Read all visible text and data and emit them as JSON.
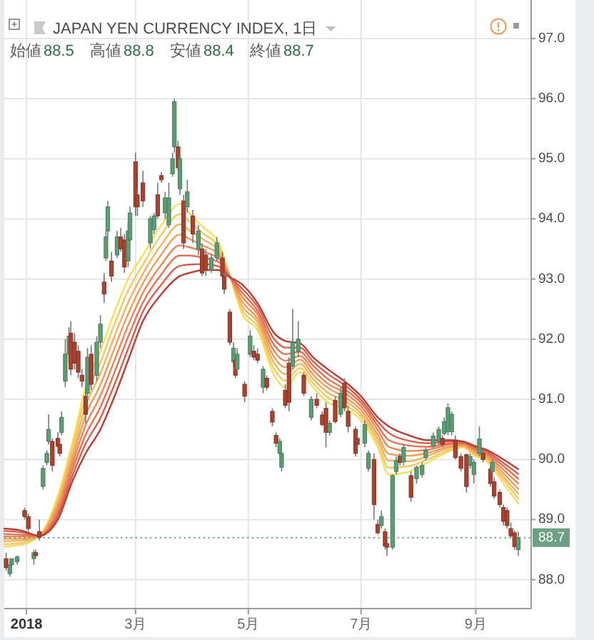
{
  "chart_data": {
    "type": "candlestick",
    "title": "JAPAN YEN CURRENCY INDEX, 1日",
    "annotations": [
      "始値88.5",
      "高値88.8",
      "安値88.4",
      "終値88.7"
    ],
    "xlim": [
      "2017-12-20",
      "2018-10-01"
    ],
    "xticks": [
      {
        "value": "2018-01-01",
        "label": "2018"
      },
      {
        "value": "2018-03-01",
        "label": "3月"
      },
      {
        "value": "2018-05-01",
        "label": "5月"
      },
      {
        "value": "2018-07-01",
        "label": "7月"
      },
      {
        "value": "2018-09-01",
        "label": "9月"
      }
    ],
    "ylim": [
      87.52,
      97.64
    ],
    "yticks": [
      {
        "value": 88,
        "label": "88.0"
      },
      {
        "value": 89,
        "label": "89.0"
      },
      {
        "value": 90,
        "label": "90.0"
      },
      {
        "value": 91,
        "label": "91.0"
      },
      {
        "value": 92,
        "label": "92.0"
      },
      {
        "value": 93,
        "label": "93.0"
      },
      {
        "value": 94,
        "label": "94.0"
      },
      {
        "value": 95,
        "label": "95.0"
      },
      {
        "value": 96,
        "label": "96.0"
      },
      {
        "value": 97,
        "label": "97.0"
      }
    ],
    "grid": true,
    "x": [
      "2017-12-21",
      "2017-12-23",
      "2017-12-24",
      "2017-12-27",
      "2017-12-31",
      "2018-01-02",
      "2018-01-05",
      "2018-01-06",
      "2018-01-08",
      "2018-01-10",
      "2018-01-12",
      "2018-01-13",
      "2018-01-15",
      "2018-01-18",
      "2018-01-19",
      "2018-01-20",
      "2018-01-22",
      "2018-01-24",
      "2018-01-25",
      "2018-01-27",
      "2018-01-29",
      "2018-01-31",
      "2018-02-02",
      "2018-02-03",
      "2018-02-05",
      "2018-02-08",
      "2018-02-10",
      "2018-02-12",
      "2018-02-13",
      "2018-02-14",
      "2018-02-16",
      "2018-02-19",
      "2018-02-21",
      "2018-02-23",
      "2018-02-25",
      "2018-02-26",
      "2018-03-01",
      "2018-03-02",
      "2018-03-05",
      "2018-03-09",
      "2018-03-11",
      "2018-03-13",
      "2018-03-15",
      "2018-03-17",
      "2018-03-19",
      "2018-03-21",
      "2018-03-22",
      "2018-03-24",
      "2018-03-25",
      "2018-03-27",
      "2018-03-29",
      "2018-04-01",
      "2018-04-04",
      "2018-04-06",
      "2018-04-08",
      "2018-04-11",
      "2018-04-14",
      "2018-04-17",
      "2018-04-18",
      "2018-04-21",
      "2018-04-23",
      "2018-04-24",
      "2018-04-25",
      "2018-04-29",
      "2018-05-02",
      "2018-05-04",
      "2018-05-06",
      "2018-05-09",
      "2018-05-11",
      "2018-05-14",
      "2018-05-16",
      "2018-05-18",
      "2018-05-19",
      "2018-05-21",
      "2018-05-23",
      "2018-05-25",
      "2018-05-28",
      "2018-05-31",
      "2018-06-04",
      "2018-06-07",
      "2018-06-10",
      "2018-06-12",
      "2018-06-14",
      "2018-06-17",
      "2018-06-20",
      "2018-06-22",
      "2018-06-24",
      "2018-06-28",
      "2018-06-29",
      "2018-07-03",
      "2018-07-05",
      "2018-07-08",
      "2018-07-10",
      "2018-07-12",
      "2018-07-14",
      "2018-07-15",
      "2018-07-18",
      "2018-07-20",
      "2018-07-22",
      "2018-07-24",
      "2018-07-28",
      "2018-07-31",
      "2018-08-03",
      "2018-08-05",
      "2018-08-09",
      "2018-08-12",
      "2018-08-14",
      "2018-08-15",
      "2018-08-17",
      "2018-08-19",
      "2018-08-21",
      "2018-08-24",
      "2018-08-27",
      "2018-08-29",
      "2018-08-31",
      "2018-09-03",
      "2018-09-05",
      "2018-09-09",
      "2018-09-10",
      "2018-09-11",
      "2018-09-14",
      "2018-09-16",
      "2018-09-18",
      "2018-09-20",
      "2018-09-22",
      "2018-09-24"
    ],
    "ohlc": [
      [
        88.35,
        88.45,
        88.15,
        88.2
      ],
      [
        88.1,
        88.3,
        88.05,
        88.25
      ],
      [
        88.25,
        88.35,
        88.2,
        88.35
      ],
      [
        88.3,
        88.4,
        88.25,
        88.38
      ],
      [
        89.15,
        89.2,
        89.0,
        89.05
      ],
      [
        89.05,
        89.1,
        88.8,
        88.85
      ],
      [
        88.35,
        88.5,
        88.25,
        88.45
      ],
      [
        88.45,
        88.5,
        88.38,
        88.4
      ],
      [
        88.8,
        89.0,
        88.65,
        88.7
      ],
      [
        89.55,
        89.9,
        89.5,
        89.85
      ],
      [
        89.95,
        90.15,
        89.9,
        90.1
      ],
      [
        90.3,
        90.75,
        90.25,
        90.5
      ],
      [
        90.3,
        90.35,
        89.8,
        89.9
      ],
      [
        90.35,
        90.45,
        90.2,
        90.22
      ],
      [
        90.25,
        90.3,
        90.05,
        90.1
      ],
      [
        90.45,
        90.8,
        90.4,
        90.7
      ],
      [
        91.3,
        92.0,
        91.2,
        91.75
      ],
      [
        91.75,
        92.2,
        91.6,
        92.05
      ],
      [
        92.1,
        92.3,
        91.4,
        91.5
      ],
      [
        91.95,
        92.1,
        91.5,
        91.6
      ],
      [
        91.8,
        91.9,
        91.35,
        91.45
      ],
      [
        91.4,
        91.5,
        91.2,
        91.3
      ],
      [
        91.05,
        91.15,
        90.6,
        90.75
      ],
      [
        91.1,
        91.85,
        91.0,
        91.7
      ],
      [
        91.75,
        91.9,
        91.15,
        91.25
      ],
      [
        91.4,
        92.05,
        91.3,
        91.95
      ],
      [
        91.95,
        92.4,
        91.85,
        92.25
      ],
      [
        92.95,
        93.1,
        92.6,
        92.75
      ],
      [
        93.35,
        93.8,
        93.3,
        93.7
      ],
      [
        93.8,
        94.3,
        93.7,
        94.2
      ],
      [
        93.3,
        93.45,
        92.95,
        93.05
      ],
      [
        93.4,
        93.8,
        93.35,
        93.7
      ],
      [
        93.7,
        93.85,
        93.45,
        93.5
      ],
      [
        93.65,
        93.75,
        93.1,
        93.2
      ],
      [
        93.3,
        93.95,
        93.2,
        93.8
      ],
      [
        93.65,
        94.2,
        93.6,
        94.1
      ],
      [
        94.95,
        95.1,
        94.05,
        94.2
      ],
      [
        94.4,
        94.5,
        94.05,
        94.2
      ],
      [
        94.6,
        94.8,
        94.2,
        94.3
      ],
      [
        93.6,
        94.05,
        93.5,
        94.0
      ],
      [
        93.82,
        94.1,
        93.75,
        94.05
      ],
      [
        94.4,
        94.6,
        94.0,
        94.05
      ],
      [
        94.72,
        94.78,
        94.6,
        94.65
      ],
      [
        94.1,
        94.45,
        94.0,
        94.35
      ],
      [
        93.9,
        94.6,
        93.85,
        94.35
      ],
      [
        94.75,
        95.1,
        94.7,
        95.0
      ],
      [
        95.2,
        96.0,
        95.1,
        95.95
      ],
      [
        95.2,
        95.3,
        94.8,
        94.85
      ],
      [
        94.5,
        95.1,
        94.4,
        95.0
      ],
      [
        94.3,
        94.4,
        93.5,
        93.6
      ],
      [
        94.2,
        94.65,
        94.1,
        94.45
      ],
      [
        94.05,
        94.15,
        93.6,
        93.75
      ],
      [
        93.5,
        93.9,
        93.4,
        93.8
      ],
      [
        93.5,
        93.6,
        93.05,
        93.1
      ],
      [
        93.4,
        93.5,
        93.05,
        93.15
      ],
      [
        93.15,
        93.4,
        93.1,
        93.35
      ],
      [
        93.35,
        93.7,
        93.3,
        93.6
      ],
      [
        93.35,
        93.45,
        93.0,
        93.05
      ],
      [
        93.05,
        93.1,
        92.75,
        92.83
      ],
      [
        92.45,
        92.5,
        91.9,
        91.95
      ],
      [
        91.62,
        91.95,
        91.55,
        91.85
      ],
      [
        91.65,
        91.7,
        91.35,
        91.4
      ],
      [
        91.5,
        91.85,
        91.45,
        91.75
      ],
      [
        91.25,
        91.3,
        90.95,
        91.05
      ],
      [
        91.75,
        92.15,
        91.7,
        92.05
      ],
      [
        91.8,
        91.9,
        91.65,
        91.7
      ],
      [
        91.75,
        91.85,
        91.6,
        91.65
      ],
      [
        91.2,
        91.55,
        91.1,
        91.5
      ],
      [
        91.35,
        91.4,
        91.15,
        91.2
      ],
      [
        90.8,
        90.85,
        90.55,
        90.62
      ],
      [
        90.4,
        90.45,
        90.2,
        90.27
      ],
      [
        90.1,
        90.35,
        90.05,
        90.3
      ],
      [
        89.87,
        90.15,
        89.8,
        90.1
      ],
      [
        91.15,
        91.25,
        90.85,
        90.9
      ],
      [
        91.6,
        91.7,
        90.8,
        90.95
      ],
      [
        91.55,
        92.5,
        91.5,
        91.95
      ],
      [
        91.8,
        92.3,
        91.7,
        92.0
      ],
      [
        91.4,
        91.45,
        91.05,
        91.1
      ],
      [
        90.7,
        91.05,
        90.65,
        91.0
      ],
      [
        91.0,
        91.1,
        90.85,
        90.9
      ],
      [
        90.74,
        90.8,
        90.55,
        90.58
      ],
      [
        90.85,
        90.95,
        90.2,
        90.45
      ],
      [
        90.45,
        90.65,
        90.4,
        90.6
      ],
      [
        90.98,
        91.05,
        90.6,
        90.63
      ],
      [
        90.75,
        91.2,
        90.7,
        91.1
      ],
      [
        91.27,
        91.35,
        90.8,
        90.86
      ],
      [
        90.8,
        90.9,
        90.45,
        90.55
      ],
      [
        90.5,
        90.55,
        90.05,
        90.1
      ],
      [
        90.35,
        90.4,
        90.2,
        90.25
      ],
      [
        90.27,
        90.65,
        90.2,
        90.58
      ],
      [
        89.85,
        90.15,
        89.8,
        90.1
      ],
      [
        90.0,
        90.1,
        89.0,
        89.25
      ],
      [
        88.92,
        89.0,
        88.75,
        88.78
      ],
      [
        88.9,
        89.15,
        88.85,
        89.05
      ],
      [
        88.8,
        88.85,
        88.5,
        88.56
      ],
      [
        88.6,
        88.65,
        88.4,
        88.54
      ],
      [
        88.54,
        89.75,
        88.5,
        89.73
      ],
      [
        89.8,
        90.05,
        89.75,
        89.98
      ],
      [
        90.05,
        90.1,
        89.9,
        89.95
      ],
      [
        89.96,
        90.25,
        89.9,
        90.2
      ],
      [
        89.73,
        89.8,
        89.3,
        89.37
      ],
      [
        89.68,
        89.9,
        89.6,
        89.87
      ],
      [
        89.75,
        89.95,
        89.7,
        89.9
      ],
      [
        90.03,
        90.2,
        89.98,
        90.15
      ],
      [
        90.22,
        90.45,
        90.18,
        90.39
      ],
      [
        90.3,
        90.55,
        90.25,
        90.5
      ],
      [
        90.35,
        90.4,
        90.2,
        90.25
      ],
      [
        90.43,
        90.7,
        90.4,
        90.63
      ],
      [
        90.46,
        90.93,
        90.4,
        90.86
      ],
      [
        90.46,
        90.8,
        90.4,
        90.75
      ],
      [
        90.32,
        90.4,
        90.0,
        90.03
      ],
      [
        90.05,
        90.1,
        89.8,
        89.85
      ],
      [
        90.08,
        90.1,
        89.45,
        89.55
      ],
      [
        89.9,
        90.1,
        89.85,
        90.05
      ],
      [
        89.75,
        90.0,
        89.6,
        89.95
      ],
      [
        90.1,
        90.55,
        90.05,
        90.34
      ],
      [
        90.1,
        90.15,
        89.95,
        90.0
      ],
      [
        89.84,
        89.9,
        89.55,
        89.6
      ],
      [
        89.8,
        90.0,
        89.75,
        89.95
      ],
      [
        89.63,
        89.7,
        89.35,
        89.39
      ],
      [
        89.45,
        89.5,
        89.2,
        89.25
      ],
      [
        89.2,
        89.25,
        88.9,
        88.97
      ],
      [
        89.15,
        89.2,
        88.85,
        88.9
      ],
      [
        88.85,
        88.95,
        88.7,
        88.73
      ],
      [
        88.78,
        88.82,
        88.5,
        88.55
      ],
      [
        88.5,
        88.8,
        88.4,
        88.7
      ]
    ],
    "colors": [
      "#a8432f",
      "#5e9c74",
      "#5e9c74",
      "#5e9c74",
      "#a8432f",
      "#a8432f",
      "#5e9c74",
      "#a8432f",
      "#a8432f",
      "#5e9c74",
      "#5e9c74",
      "#5e9c74",
      "#a8432f",
      "#a8432f",
      "#a8432f",
      "#5e9c74",
      "#5e9c74",
      "#5e9c74",
      "#a8432f",
      "#a8432f",
      "#a8432f",
      "#a8432f",
      "#a8432f",
      "#5e9c74",
      "#a8432f",
      "#5e9c74",
      "#5e9c74",
      "#a8432f",
      "#5e9c74",
      "#5e9c74",
      "#a8432f",
      "#5e9c74",
      "#a8432f",
      "#a8432f",
      "#5e9c74",
      "#5e9c74",
      "#a8432f",
      "#a8432f",
      "#a8432f",
      "#5e9c74",
      "#5e9c74",
      "#a8432f",
      "#a8432f",
      "#5e9c74",
      "#5e9c74",
      "#5e9c74",
      "#5e9c74",
      "#a8432f",
      "#5e9c74",
      "#a8432f",
      "#5e9c74",
      "#a8432f",
      "#5e9c74",
      "#a8432f",
      "#a8432f",
      "#5e9c74",
      "#5e9c74",
      "#a8432f",
      "#a8432f",
      "#a8432f",
      "#5e9c74",
      "#a8432f",
      "#5e9c74",
      "#a8432f",
      "#5e9c74",
      "#a8432f",
      "#a8432f",
      "#5e9c74",
      "#a8432f",
      "#a8432f",
      "#a8432f",
      "#5e9c74",
      "#5e9c74",
      "#a8432f",
      "#a8432f",
      "#5e9c74",
      "#5e9c74",
      "#a8432f",
      "#5e9c74",
      "#a8432f",
      "#a8432f",
      "#a8432f",
      "#5e9c74",
      "#a8432f",
      "#5e9c74",
      "#a8432f",
      "#a8432f",
      "#a8432f",
      "#a8432f",
      "#5e9c74",
      "#5e9c74",
      "#a8432f",
      "#a8432f",
      "#5e9c74",
      "#a8432f",
      "#a8432f",
      "#5e9c74",
      "#5e9c74",
      "#a8432f",
      "#5e9c74",
      "#a8432f",
      "#5e9c74",
      "#5e9c74",
      "#5e9c74",
      "#5e9c74",
      "#5e9c74",
      "#a8432f",
      "#5e9c74",
      "#5e9c74",
      "#5e9c74",
      "#a8432f",
      "#a8432f",
      "#a8432f",
      "#5e9c74",
      "#5e9c74",
      "#5e9c74",
      "#a8432f",
      "#a8432f",
      "#5e9c74",
      "#a8432f",
      "#a8432f",
      "#a8432f",
      "#a8432f",
      "#a8432f",
      "#a8432f",
      "#5e9c74"
    ],
    "series": [
      {
        "type": "line",
        "color": "#f3df5a",
        "x": [
          "2017-12-20",
          "2017-12-29",
          "2018-01-08",
          "2018-01-18",
          "2018-01-26",
          "2018-02-02",
          "2018-02-10",
          "2018-02-17",
          "2018-02-25",
          "2018-03-05",
          "2018-03-15",
          "2018-03-25",
          "2018-03-30",
          "2018-04-07",
          "2018-04-15",
          "2018-04-20",
          "2018-04-28",
          "2018-05-06",
          "2018-05-15",
          "2018-05-21",
          "2018-05-29",
          "2018-06-05",
          "2018-06-13",
          "2018-06-22",
          "2018-07-01",
          "2018-07-10",
          "2018-07-16",
          "2018-07-27",
          "2018-08-06",
          "2018-08-19",
          "2018-08-25",
          "2018-09-01",
          "2018-09-06",
          "2018-09-16",
          "2018-09-24"
        ],
        "values": [
          88.55,
          88.58,
          88.73,
          89.4,
          90.3,
          91.2,
          91.8,
          92.4,
          93.0,
          93.4,
          93.9,
          94.25,
          94.1,
          93.85,
          93.6,
          93.15,
          92.4,
          92.15,
          91.4,
          91.2,
          91.45,
          91.2,
          90.95,
          90.85,
          90.65,
          90.2,
          89.75,
          89.8,
          89.95,
          90.15,
          90.2,
          90.05,
          90.0,
          89.6,
          89.27
        ]
      },
      {
        "type": "line",
        "color": "#f4c961",
        "x": [
          "2017-12-20",
          "2017-12-29",
          "2018-01-08",
          "2018-01-18",
          "2018-01-26",
          "2018-02-02",
          "2018-02-10",
          "2018-02-17",
          "2018-02-25",
          "2018-03-05",
          "2018-03-15",
          "2018-03-25",
          "2018-03-30",
          "2018-04-07",
          "2018-04-15",
          "2018-04-20",
          "2018-04-28",
          "2018-05-06",
          "2018-05-15",
          "2018-05-21",
          "2018-05-29",
          "2018-06-05",
          "2018-06-13",
          "2018-06-22",
          "2018-07-01",
          "2018-07-10",
          "2018-07-16",
          "2018-07-27",
          "2018-08-06",
          "2018-08-19",
          "2018-08-25",
          "2018-09-01",
          "2018-09-06",
          "2018-09-16",
          "2018-09-24"
        ],
        "values": [
          88.59,
          88.61,
          88.73,
          89.34,
          90.21,
          91.04,
          91.61,
          92.2,
          92.81,
          93.24,
          93.74,
          94.08,
          93.96,
          93.75,
          93.54,
          93.14,
          92.47,
          92.21,
          91.5,
          91.31,
          91.52,
          91.27,
          91.03,
          90.91,
          90.71,
          90.27,
          89.86,
          89.89,
          90.0,
          90.17,
          90.21,
          90.07,
          90.02,
          89.66,
          89.35
        ]
      },
      {
        "type": "line",
        "color": "#f2b25f",
        "x": [
          "2017-12-20",
          "2017-12-29",
          "2018-01-08",
          "2018-01-18",
          "2018-01-26",
          "2018-02-02",
          "2018-02-10",
          "2018-02-17",
          "2018-02-25",
          "2018-03-05",
          "2018-03-15",
          "2018-03-25",
          "2018-03-30",
          "2018-04-07",
          "2018-04-15",
          "2018-04-20",
          "2018-04-28",
          "2018-05-06",
          "2018-05-15",
          "2018-05-21",
          "2018-05-29",
          "2018-06-05",
          "2018-06-13",
          "2018-06-22",
          "2018-07-01",
          "2018-07-10",
          "2018-07-16",
          "2018-07-27",
          "2018-08-06",
          "2018-08-19",
          "2018-08-25",
          "2018-09-01",
          "2018-09-06",
          "2018-09-16",
          "2018-09-24"
        ],
        "values": [
          88.64,
          88.65,
          88.73,
          89.29,
          90.11,
          90.89,
          91.43,
          92.0,
          92.61,
          93.09,
          93.57,
          93.91,
          93.81,
          93.65,
          93.47,
          93.12,
          92.54,
          92.28,
          91.6,
          91.42,
          91.59,
          91.34,
          91.11,
          90.98,
          90.76,
          90.34,
          89.98,
          89.97,
          90.06,
          90.2,
          90.23,
          90.1,
          90.05,
          89.71,
          89.43
        ]
      },
      {
        "type": "line",
        "color": "#ef9c5b",
        "x": [
          "2017-12-20",
          "2017-12-29",
          "2018-01-08",
          "2018-01-18",
          "2018-01-26",
          "2018-02-02",
          "2018-02-10",
          "2018-02-17",
          "2018-02-25",
          "2018-03-05",
          "2018-03-15",
          "2018-03-25",
          "2018-03-30",
          "2018-04-07",
          "2018-04-15",
          "2018-04-20",
          "2018-04-28",
          "2018-05-06",
          "2018-05-15",
          "2018-05-21",
          "2018-05-29",
          "2018-06-05",
          "2018-06-13",
          "2018-06-22",
          "2018-07-01",
          "2018-07-10",
          "2018-07-16",
          "2018-07-27",
          "2018-08-06",
          "2018-08-19",
          "2018-08-25",
          "2018-09-01",
          "2018-09-06",
          "2018-09-16",
          "2018-09-24"
        ],
        "values": [
          88.68,
          88.68,
          88.73,
          89.23,
          90.02,
          90.73,
          91.24,
          91.8,
          92.42,
          92.93,
          93.41,
          93.74,
          93.67,
          93.55,
          93.41,
          93.11,
          92.61,
          92.34,
          91.7,
          91.53,
          91.66,
          91.41,
          91.19,
          91.04,
          90.82,
          90.41,
          90.09,
          90.06,
          90.11,
          90.22,
          90.24,
          90.12,
          90.07,
          89.77,
          89.51
        ]
      },
      {
        "type": "line",
        "color": "#ea8657",
        "x": [
          "2017-12-20",
          "2017-12-29",
          "2018-01-08",
          "2018-01-18",
          "2018-01-26",
          "2018-02-02",
          "2018-02-10",
          "2018-02-17",
          "2018-02-25",
          "2018-03-05",
          "2018-03-15",
          "2018-03-25",
          "2018-03-30",
          "2018-04-07",
          "2018-04-15",
          "2018-04-20",
          "2018-04-28",
          "2018-05-06",
          "2018-05-15",
          "2018-05-21",
          "2018-05-29",
          "2018-06-05",
          "2018-06-13",
          "2018-06-22",
          "2018-07-01",
          "2018-07-10",
          "2018-07-16",
          "2018-07-27",
          "2018-08-06",
          "2018-08-19",
          "2018-08-25",
          "2018-09-01",
          "2018-09-06",
          "2018-09-16",
          "2018-09-24"
        ],
        "values": [
          88.72,
          88.72,
          88.73,
          89.17,
          89.93,
          90.57,
          91.06,
          91.6,
          92.23,
          92.77,
          93.24,
          93.56,
          93.53,
          93.45,
          93.34,
          93.09,
          92.69,
          92.41,
          91.8,
          91.64,
          91.72,
          91.49,
          91.26,
          91.11,
          90.88,
          90.49,
          90.21,
          90.14,
          90.16,
          90.25,
          90.26,
          90.15,
          90.1,
          89.83,
          89.6
        ]
      },
      {
        "type": "line",
        "color": "#e27253",
        "x": [
          "2017-12-20",
          "2017-12-29",
          "2018-01-08",
          "2018-01-18",
          "2018-01-26",
          "2018-02-02",
          "2018-02-10",
          "2018-02-17",
          "2018-02-25",
          "2018-03-05",
          "2018-03-15",
          "2018-03-25",
          "2018-03-30",
          "2018-04-07",
          "2018-04-15",
          "2018-04-20",
          "2018-04-28",
          "2018-05-06",
          "2018-05-15",
          "2018-05-21",
          "2018-05-29",
          "2018-06-05",
          "2018-06-13",
          "2018-06-22",
          "2018-07-01",
          "2018-07-10",
          "2018-07-16",
          "2018-07-27",
          "2018-08-06",
          "2018-08-19",
          "2018-08-25",
          "2018-09-01",
          "2018-09-06",
          "2018-09-16",
          "2018-09-24"
        ],
        "values": [
          88.76,
          88.75,
          88.73,
          89.11,
          89.84,
          90.41,
          90.87,
          91.4,
          92.04,
          92.61,
          93.08,
          93.39,
          93.39,
          93.35,
          93.28,
          93.08,
          92.76,
          92.47,
          91.9,
          91.75,
          91.79,
          91.56,
          91.34,
          91.17,
          90.94,
          90.56,
          90.32,
          90.23,
          90.21,
          90.27,
          90.27,
          90.17,
          90.12,
          89.89,
          89.68
        ]
      },
      {
        "type": "line",
        "color": "#d65e4c",
        "x": [
          "2017-12-20",
          "2017-12-29",
          "2018-01-08",
          "2018-01-18",
          "2018-01-26",
          "2018-02-02",
          "2018-02-10",
          "2018-02-17",
          "2018-02-25",
          "2018-03-05",
          "2018-03-15",
          "2018-03-25",
          "2018-03-30",
          "2018-04-07",
          "2018-04-15",
          "2018-04-20",
          "2018-04-28",
          "2018-05-06",
          "2018-05-15",
          "2018-05-21",
          "2018-05-29",
          "2018-06-05",
          "2018-06-13",
          "2018-06-22",
          "2018-07-01",
          "2018-07-10",
          "2018-07-16",
          "2018-07-27",
          "2018-08-06",
          "2018-08-19",
          "2018-08-25",
          "2018-09-01",
          "2018-09-06",
          "2018-09-16",
          "2018-09-24"
        ],
        "values": [
          88.81,
          88.79,
          88.73,
          89.06,
          89.74,
          90.26,
          90.69,
          91.2,
          91.84,
          92.46,
          92.91,
          93.22,
          93.24,
          93.25,
          93.21,
          93.06,
          92.83,
          92.54,
          92.0,
          91.86,
          91.86,
          91.63,
          91.42,
          91.24,
          90.99,
          90.63,
          90.44,
          90.31,
          90.27,
          90.3,
          90.29,
          90.2,
          90.15,
          89.94,
          89.76
        ]
      },
      {
        "type": "line",
        "color": "#b83f35",
        "x": [
          "2017-12-20",
          "2017-12-29",
          "2018-01-08",
          "2018-01-18",
          "2018-01-26",
          "2018-02-02",
          "2018-02-10",
          "2018-02-17",
          "2018-02-25",
          "2018-03-05",
          "2018-03-15",
          "2018-03-25",
          "2018-03-30",
          "2018-04-07",
          "2018-04-15",
          "2018-04-20",
          "2018-04-28",
          "2018-05-06",
          "2018-05-15",
          "2018-05-21",
          "2018-05-29",
          "2018-06-05",
          "2018-06-13",
          "2018-06-22",
          "2018-07-01",
          "2018-07-10",
          "2018-07-16",
          "2018-07-27",
          "2018-08-06",
          "2018-08-19",
          "2018-08-25",
          "2018-09-01",
          "2018-09-06",
          "2018-09-16",
          "2018-09-24"
        ],
        "values": [
          88.85,
          88.82,
          88.73,
          89.0,
          89.65,
          90.1,
          90.5,
          91.0,
          91.65,
          92.3,
          92.75,
          93.05,
          93.1,
          93.15,
          93.15,
          93.05,
          92.9,
          92.6,
          92.1,
          91.97,
          91.93,
          91.7,
          91.5,
          91.3,
          91.05,
          90.7,
          90.55,
          90.4,
          90.32,
          90.32,
          90.3,
          90.22,
          90.17,
          90.0,
          89.84
        ]
      }
    ],
    "ref_lines": [
      {
        "axis": "y",
        "value": 88.7,
        "label": "88.7",
        "color": "#6d9f83",
        "line_style": "dotted"
      }
    ]
  }
}
